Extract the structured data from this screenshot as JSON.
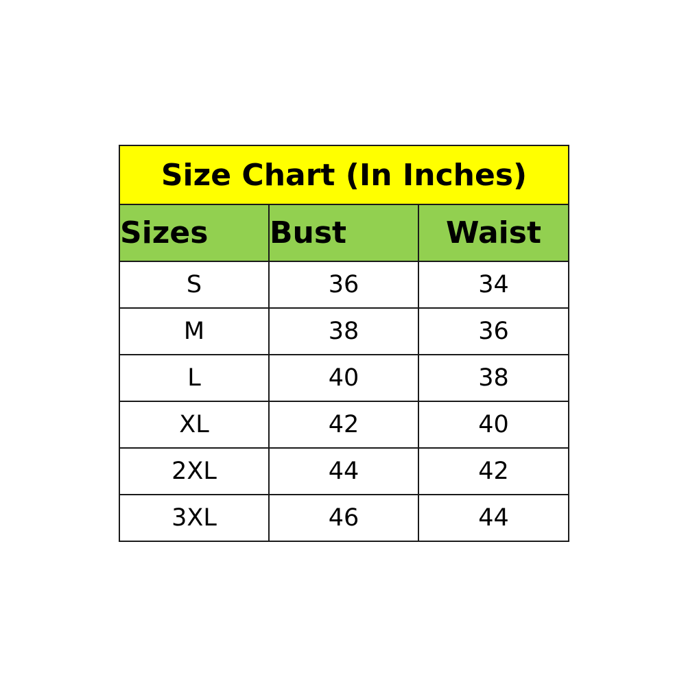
{
  "chart_data": {
    "type": "table",
    "title": "Size Chart (In Inches)",
    "columns": [
      "Sizes",
      "Bust",
      "Waist"
    ],
    "rows": [
      [
        "S",
        "36",
        "34"
      ],
      [
        "M",
        "38",
        "36"
      ],
      [
        "L",
        "40",
        "38"
      ],
      [
        "XL",
        "42",
        "40"
      ],
      [
        "2XL",
        "44",
        "42"
      ],
      [
        "3XL",
        "46",
        "44"
      ]
    ],
    "colors": {
      "title_bg": "#ffff00",
      "header_bg": "#92d050",
      "border": "#1a1a1a"
    }
  }
}
